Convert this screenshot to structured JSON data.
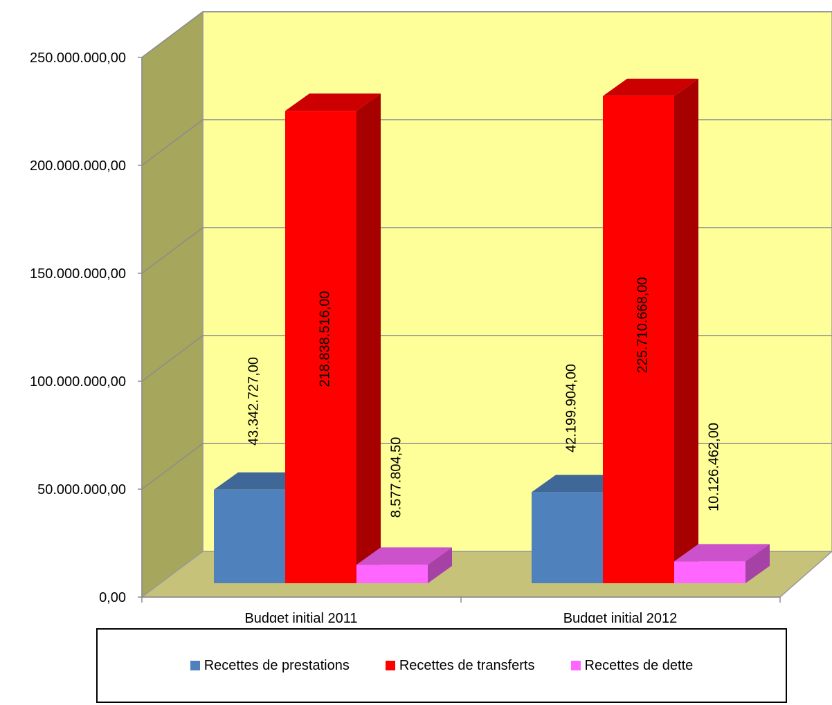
{
  "chart_data": {
    "type": "bar",
    "title": "",
    "xlabel": "",
    "ylabel": "",
    "ylim": [
      0,
      250000000
    ],
    "yticks": [
      0,
      50000000,
      100000000,
      150000000,
      200000000,
      250000000
    ],
    "ytick_labels": [
      "0,00",
      "50.000.000,00",
      "100.000.000,00",
      "150.000.000,00",
      "200.000.000,00",
      "250.000.000,00"
    ],
    "categories": [
      "Budget initial 2011",
      "Budget initial 2012"
    ],
    "grid": true,
    "legend_position": "bottom",
    "series": [
      {
        "name": "Recettes de prestations",
        "color": "#4f81bd",
        "values": [
          43342727.0,
          42199904.0
        ],
        "labels": [
          "43.342.727,00",
          "42.199.904,00"
        ]
      },
      {
        "name": "Recettes de transferts",
        "color": "#ff0000",
        "values": [
          218838516.0,
          225710668.0
        ],
        "labels": [
          "218.838.516,00",
          "225.710.668,00"
        ]
      },
      {
        "name": "Recettes de dette",
        "color": "#ff66ff",
        "values": [
          8577804.5,
          10126462.0
        ],
        "labels": [
          "8.577.804,50",
          "10.126.462,00"
        ]
      }
    ]
  }
}
